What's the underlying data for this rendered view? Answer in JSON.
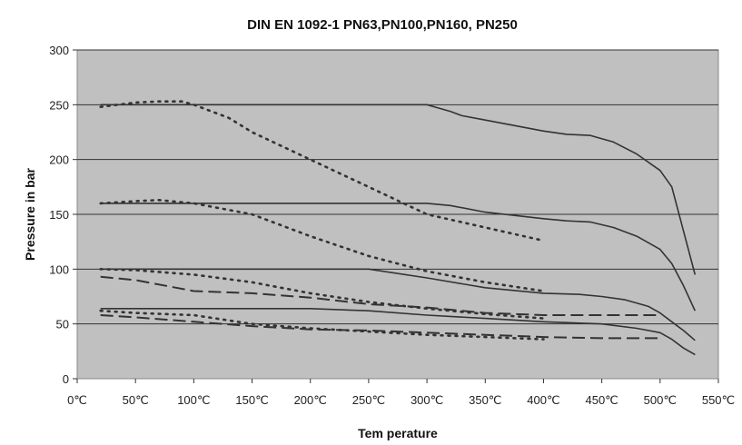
{
  "chart_data": {
    "type": "line",
    "title": "DIN EN 1092-1 PN63,PN100,PN160, PN250",
    "xlabel": "Tem perature",
    "ylabel": "Pressure in bar",
    "xlim": [
      0,
      550
    ],
    "ylim": [
      0,
      300
    ],
    "x_ticks": [
      0,
      50,
      100,
      150,
      200,
      250,
      300,
      350,
      400,
      450,
      500,
      550
    ],
    "x_tick_labels": [
      "0℃",
      "50℃",
      "100℃",
      "150℃",
      "200℃",
      "250℃",
      "300℃",
      "350℃",
      "400℃",
      "450℃",
      "500℃",
      "550℃"
    ],
    "y_ticks": [
      0,
      50,
      100,
      150,
      200,
      250,
      300
    ],
    "y_tick_labels": [
      "0",
      "50",
      "100",
      "150",
      "200",
      "250",
      "300"
    ],
    "grid": "horizontal",
    "plot_background": "#c0c0c0",
    "line_color": "#333333",
    "series": [
      {
        "style": "solid",
        "x": [
          20,
          50,
          100,
          150,
          200,
          250,
          300,
          310,
          320,
          330,
          350,
          400,
          420,
          440,
          460,
          480,
          500,
          510,
          520,
          530
        ],
        "y": [
          250,
          250,
          250,
          250,
          250,
          250,
          250,
          247,
          244,
          240,
          236,
          226,
          223,
          222,
          216,
          205,
          190,
          175,
          135,
          95
        ]
      },
      {
        "style": "dotted",
        "x": [
          20,
          50,
          70,
          90,
          100,
          130,
          150,
          200,
          250,
          300,
          350,
          400
        ],
        "y": [
          248,
          252,
          253,
          253,
          250,
          238,
          225,
          200,
          175,
          150,
          138,
          126
        ]
      },
      {
        "style": "solid",
        "x": [
          20,
          50,
          100,
          150,
          200,
          250,
          300,
          320,
          350,
          400,
          420,
          440,
          460,
          480,
          500,
          510,
          520,
          530
        ],
        "y": [
          160,
          160,
          160,
          160,
          160,
          160,
          160,
          158,
          152,
          146,
          144,
          143,
          138,
          130,
          118,
          105,
          85,
          62
        ]
      },
      {
        "style": "dotted",
        "x": [
          20,
          50,
          70,
          100,
          150,
          200,
          250,
          300,
          350,
          400
        ],
        "y": [
          160,
          162,
          163,
          160,
          150,
          130,
          112,
          98,
          88,
          80
        ]
      },
      {
        "style": "solid",
        "x": [
          20,
          100,
          200,
          250,
          300,
          350,
          400,
          430,
          450,
          470,
          490,
          500,
          510,
          520,
          530
        ],
        "y": [
          100,
          100,
          100,
          100,
          92,
          83,
          78,
          77,
          75,
          72,
          66,
          60,
          52,
          44,
          35
        ]
      },
      {
        "style": "dotted",
        "x": [
          20,
          50,
          100,
          150,
          200,
          250,
          300,
          350,
          400
        ],
        "y": [
          100,
          99,
          95,
          88,
          78,
          70,
          64,
          59,
          55
        ]
      },
      {
        "style": "dashed",
        "x": [
          20,
          50,
          100,
          150,
          200,
          250,
          300,
          350,
          400,
          450,
          500
        ],
        "y": [
          93,
          90,
          80,
          78,
          74,
          68,
          65,
          60,
          58,
          58,
          58
        ]
      },
      {
        "style": "solid",
        "x": [
          20,
          100,
          200,
          250,
          300,
          350,
          400,
          450,
          480,
          500,
          510,
          520,
          530
        ],
        "y": [
          64,
          64,
          64,
          62,
          58,
          55,
          52,
          50,
          46,
          42,
          36,
          28,
          22
        ]
      },
      {
        "style": "dotted",
        "x": [
          20,
          50,
          100,
          150,
          200,
          250,
          300,
          350,
          400
        ],
        "y": [
          62,
          60,
          58,
          50,
          46,
          43,
          40,
          38,
          36
        ]
      },
      {
        "style": "dashed",
        "x": [
          20,
          50,
          100,
          150,
          200,
          250,
          300,
          350,
          400,
          450,
          500
        ],
        "y": [
          58,
          56,
          52,
          48,
          45,
          44,
          42,
          40,
          38,
          37,
          37
        ]
      }
    ]
  }
}
